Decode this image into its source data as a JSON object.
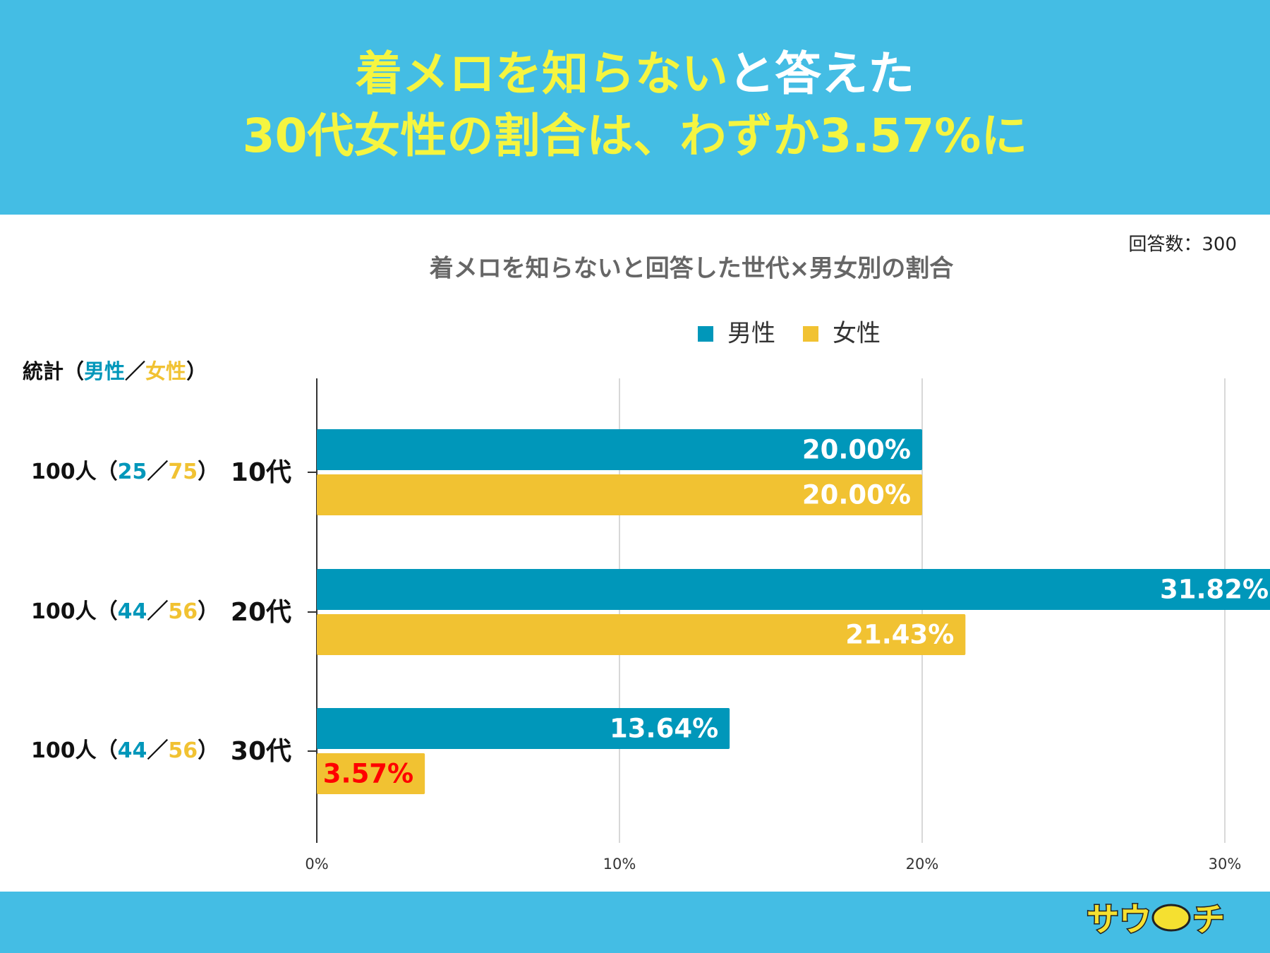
{
  "headline": {
    "line1": [
      "着メロを知らない",
      "と答えた"
    ],
    "line2": "30代女性の割合は、わずか3.57%に"
  },
  "chart_data": {
    "type": "barh",
    "title": "着メロを知らないと回答した世代×男女別の割合",
    "note": "回答数：300",
    "categories": [
      "10代",
      "20代",
      "30代"
    ],
    "series": [
      {
        "name": "男性",
        "color": "#0097ba",
        "values": [
          20,
          31.82,
          13.64
        ],
        "value_labels": [
          "20.00%",
          "31.82%",
          "13.64%"
        ]
      },
      {
        "name": "女性",
        "color": "#f1c232",
        "values": [
          20,
          21.43,
          3.57
        ],
        "value_labels": [
          "20.00%",
          "21.43%",
          "3.57%"
        ]
      }
    ],
    "highlight": {
      "series": 1,
      "index": 2,
      "color": "#ff0000"
    },
    "xlim": [
      0,
      30
    ],
    "xticks": [
      {
        "value": 0,
        "label": "0%"
      },
      {
        "value": 10,
        "label": "10%"
      },
      {
        "value": 20,
        "label": "20%"
      },
      {
        "value": 30,
        "label": "30%"
      }
    ],
    "grid": true,
    "legend": "top",
    "stats_header": [
      "統計（",
      "男性",
      "／",
      "女性",
      "）"
    ],
    "stats": [
      [
        "100人（",
        "25",
        "／",
        "75",
        "）"
      ],
      [
        "100人（",
        "44",
        "／",
        "56",
        "）"
      ],
      [
        "100人（",
        "44",
        "／",
        "56",
        "）"
      ]
    ]
  },
  "logo": [
    "サウ",
    "チ"
  ]
}
